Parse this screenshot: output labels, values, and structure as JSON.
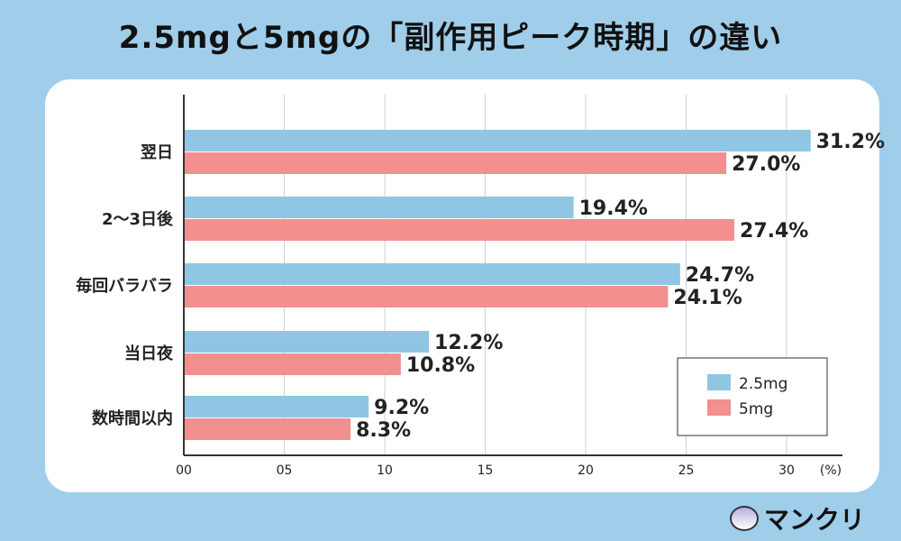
{
  "title": "2.5mgと5mgの「副作用ピーク時期」の違い",
  "chart_data": {
    "type": "bar",
    "orientation": "horizontal",
    "categories": [
      "翌日",
      "2〜3日後",
      "毎回バラバラ",
      "当日夜",
      "数時間以内"
    ],
    "series": [
      {
        "name": "2.5mg",
        "color": "#8ec6e3",
        "values": [
          31.2,
          19.4,
          24.7,
          12.2,
          9.2
        ]
      },
      {
        "name": "5mg",
        "color": "#f28f8f",
        "values": [
          27.0,
          27.4,
          24.1,
          10.8,
          8.3
        ]
      }
    ],
    "xticks": [
      "00",
      "05",
      "10",
      "15",
      "20",
      "25",
      "30"
    ],
    "xunit": "(%)",
    "xlim": [
      0,
      32.5
    ],
    "grid": true,
    "legend": "bottom-right"
  },
  "logo": {
    "text": "マンクリ"
  }
}
